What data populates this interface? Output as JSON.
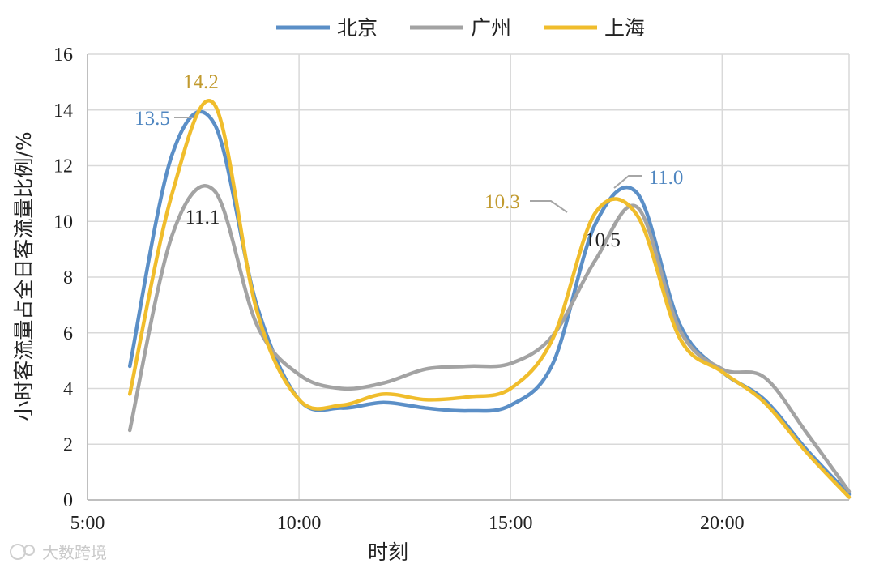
{
  "chart_data": {
    "type": "line",
    "xlabel": "时刻",
    "ylabel": "小时客流量占全日客流量比例/%",
    "xlim": [
      5,
      23
    ],
    "ylim": [
      0,
      16
    ],
    "xticks": [
      {
        "x": 5,
        "label": "5:00"
      },
      {
        "x": 10,
        "label": "10:00"
      },
      {
        "x": 15,
        "label": "15:00"
      },
      {
        "x": 20,
        "label": "20:00"
      }
    ],
    "yticks": [
      0,
      2,
      4,
      6,
      8,
      10,
      12,
      14,
      16
    ],
    "grid": true,
    "legend_position": "top",
    "series": [
      {
        "name": "北京",
        "color": "#5b8fc7",
        "x": [
          6,
          7,
          8,
          9,
          10,
          11,
          12,
          13,
          14,
          15,
          16,
          17,
          18,
          19,
          20,
          21,
          22,
          23
        ],
        "y": [
          4.8,
          12.4,
          13.5,
          7.0,
          3.6,
          3.3,
          3.5,
          3.3,
          3.2,
          3.4,
          4.9,
          9.9,
          11.0,
          6.3,
          4.6,
          3.6,
          1.8,
          0.2
        ]
      },
      {
        "name": "广州",
        "color": "#a3a3a3",
        "x": [
          6,
          7,
          8,
          9,
          10,
          11,
          12,
          13,
          14,
          15,
          16,
          17,
          18,
          19,
          20,
          21,
          22,
          23
        ],
        "y": [
          2.5,
          9.5,
          11.1,
          6.3,
          4.5,
          4.0,
          4.2,
          4.7,
          4.8,
          4.9,
          5.9,
          8.6,
          10.5,
          6.1,
          4.7,
          4.4,
          2.4,
          0.3
        ]
      },
      {
        "name": "上海",
        "color": "#f0bd2c",
        "x": [
          6,
          7,
          8,
          9,
          10,
          11,
          12,
          13,
          14,
          15,
          16,
          17,
          18,
          19,
          20,
          21,
          22,
          23
        ],
        "y": [
          3.8,
          11.0,
          14.2,
          6.8,
          3.6,
          3.4,
          3.8,
          3.6,
          3.7,
          4.0,
          5.8,
          10.3,
          10.2,
          5.8,
          4.6,
          3.5,
          1.7,
          0.1
        ]
      }
    ],
    "annotations": [
      {
        "text": "13.5",
        "color": "#4f86c0"
      },
      {
        "text": "14.2",
        "color": "#c19a2e"
      },
      {
        "text": "11.1",
        "color": "#222222"
      },
      {
        "text": "10.3",
        "color": "#c19a2e"
      },
      {
        "text": "11.0",
        "color": "#4f86c0"
      },
      {
        "text": "10.5",
        "color": "#222222"
      }
    ]
  },
  "watermark": "大数跨境"
}
